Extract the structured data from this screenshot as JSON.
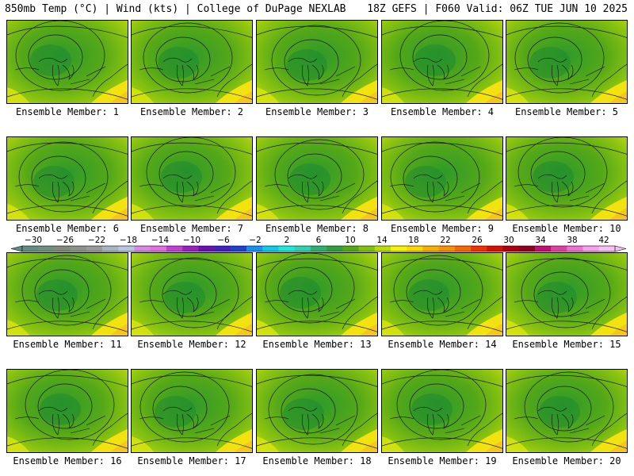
{
  "header": {
    "left": "850mb Temp (°C) | Wind (kts) | College of DuPage NEXLAB",
    "right": "18Z GEFS | F060 Valid: 06Z TUE JUN 10 2025"
  },
  "members": [
    "Ensemble Member: 1",
    "Ensemble Member: 2",
    "Ensemble Member: 3",
    "Ensemble Member: 4",
    "Ensemble Member: 5",
    "Ensemble Member: 6",
    "Ensemble Member: 7",
    "Ensemble Member: 8",
    "Ensemble Member: 9",
    "Ensemble Member: 10",
    "Ensemble Member: 11",
    "Ensemble Member: 12",
    "Ensemble Member: 13",
    "Ensemble Member: 14",
    "Ensemble Member: 15",
    "Ensemble Member: 16",
    "Ensemble Member: 17",
    "Ensemble Member: 18",
    "Ensemble Member: 19",
    "Ensemble Member: 20"
  ],
  "colorbar": {
    "tick_labels": [
      "−30",
      "−26",
      "−22",
      "−18",
      "−14",
      "−10",
      "−6",
      "−2",
      "2",
      "6",
      "10",
      "14",
      "18",
      "22",
      "26",
      "30",
      "34",
      "38",
      "42"
    ],
    "colors": [
      "#5f8f80",
      "#6f8f80",
      "#808b80",
      "#8a948a",
      "#9a9a9a",
      "#a9b4c2",
      "#b9c6e0",
      "#d48ae0",
      "#e070e0",
      "#c040d0",
      "#9a20c0",
      "#6a10b0",
      "#4020c0",
      "#2040d0",
      "#1890f0",
      "#10c8e8",
      "#20e8d8",
      "#30d0b0",
      "#30b070",
      "#2fa040",
      "#52a818",
      "#7fc010",
      "#b8dc08",
      "#f4f400",
      "#f8d800",
      "#f8b000",
      "#f89000",
      "#f86800",
      "#f03000",
      "#d81000",
      "#b00010",
      "#900020",
      "#c01070",
      "#e040a0",
      "#f070d0",
      "#f8a0e8",
      "#f8c0f0"
    ]
  }
}
